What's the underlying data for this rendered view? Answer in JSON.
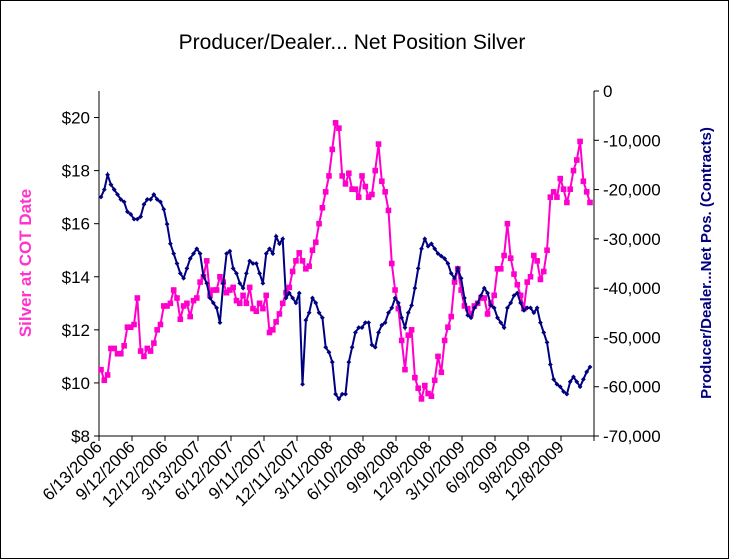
{
  "chart_data": {
    "type": "line",
    "title": "Producer/Dealer... Net Position Silver",
    "xlabel": "",
    "y_left_label": "Silver at COT Date",
    "y_right_label": "Producer/Dealer...Net Pos. (Contracts)",
    "x_tick_labels": [
      "6/13/2006",
      "9/12/2006",
      "12/12/2006",
      "3/13/2007",
      "6/12/2007",
      "9/11/2007",
      "12/11/2007",
      "3/11/2008",
      "6/10/2008",
      "9/9/2008",
      "12/9/2008",
      "3/10/2009",
      "6/9/2009",
      "9/8/2009",
      "12/8/2009"
    ],
    "y_left_ticks": [
      "$8",
      "$10",
      "$12",
      "$14",
      "$16",
      "$18",
      "$20"
    ],
    "y_left_range": [
      8,
      21
    ],
    "y_right_ticks": [
      "0",
      "-10,000",
      "-20,000",
      "-30,000",
      "-40,000",
      "-50,000",
      "-60,000",
      "-70,000"
    ],
    "y_right_range": [
      -70000,
      0
    ],
    "grid": false,
    "legend": "none",
    "series": [
      {
        "axis": "left",
        "color": "#ff00cc",
        "marker": "square",
        "values": [
          10.5,
          10.1,
          10.3,
          11.3,
          11.3,
          11.1,
          11.1,
          11.4,
          12.1,
          12.1,
          12.2,
          13.2,
          11.2,
          11.0,
          11.3,
          11.2,
          11.5,
          12.0,
          12.2,
          12.9,
          12.9,
          13.0,
          13.5,
          13.2,
          12.4,
          12.9,
          13.0,
          12.5,
          13.1,
          13.2,
          13.8,
          14.0,
          14.6,
          13.3,
          13.5,
          13.5,
          14.0,
          13.8,
          13.4,
          13.5,
          13.6,
          13.1,
          13.0,
          13.3,
          13.0,
          13.6,
          12.8,
          12.7,
          13.0,
          12.8,
          13.3,
          11.9,
          12.0,
          12.3,
          12.6,
          13.0,
          13.4,
          13.6,
          14.2,
          14.6,
          14.9,
          14.6,
          14.3,
          14.4,
          15.0,
          15.3,
          16.0,
          16.6,
          17.2,
          17.8,
          18.8,
          19.8,
          19.6,
          17.8,
          17.5,
          17.9,
          17.3,
          17.3,
          17.0,
          17.8,
          17.4,
          17.0,
          17.1,
          18.0,
          19.0,
          17.6,
          17.2,
          16.5,
          14.5,
          13.5,
          12.8,
          11.6,
          10.5,
          11.8,
          12.0,
          10.2,
          9.8,
          9.4,
          9.9,
          9.6,
          9.5,
          10.1,
          11.0,
          10.4,
          11.6,
          12.1,
          12.5,
          13.8,
          14.3,
          13.5,
          12.9,
          12.8,
          12.6,
          12.9,
          13.0,
          13.2,
          13.2,
          12.6,
          13.0,
          13.3,
          14.3,
          14.3,
          14.8,
          16.0,
          14.7,
          14.1,
          13.7,
          13.3,
          12.8,
          13.8,
          14.0,
          14.8,
          14.6,
          13.9,
          14.2,
          15.0,
          17.0,
          17.2,
          17.0,
          17.7,
          17.3,
          16.8,
          17.3,
          18.0,
          18.4,
          19.1,
          17.6,
          17.2,
          16.8
        ]
      },
      {
        "axis": "right",
        "color": "#000080",
        "marker": "diamond",
        "values": [
          -21500,
          -20000,
          -17000,
          -19000,
          -20000,
          -21000,
          -22000,
          -22500,
          -24500,
          -25000,
          -26000,
          -26000,
          -25500,
          -23000,
          -22000,
          -22000,
          -21000,
          -22000,
          -22500,
          -24000,
          -27000,
          -31000,
          -33000,
          -35000,
          -37000,
          -38000,
          -36000,
          -34000,
          -33000,
          -32000,
          -33000,
          -37500,
          -39000,
          -42000,
          -43000,
          -44000,
          -47000,
          -39000,
          -33000,
          -32500,
          -36000,
          -37000,
          -39000,
          -40000,
          -37000,
          -34500,
          -35000,
          -35000,
          -37000,
          -39000,
          -33000,
          -32000,
          -33000,
          -29500,
          -31000,
          -30000,
          -42000,
          -41000,
          -42000,
          -43000,
          -41000,
          -59500,
          -46500,
          -45000,
          -42000,
          -43000,
          -45000,
          -46000,
          -52000,
          -53000,
          -55000,
          -61500,
          -62500,
          -61500,
          -61500,
          -55000,
          -52000,
          -49000,
          -48000,
          -48000,
          -47000,
          -47000,
          -51500,
          -52000,
          -49000,
          -47500,
          -47000,
          -45000,
          -44000,
          -42000,
          -43000,
          -46000,
          -48000,
          -45000,
          -43500,
          -40000,
          -36000,
          -32000,
          -30000,
          -31500,
          -31000,
          -32000,
          -33000,
          -33500,
          -34000,
          -35000,
          -37000,
          -38000,
          -36000,
          -38000,
          -42000,
          -45500,
          -46000,
          -44000,
          -43000,
          -41500,
          -40000,
          -41000,
          -43500,
          -44000,
          -46000,
          -47000,
          -48000,
          -44000,
          -43000,
          -41500,
          -41000,
          -43000,
          -44500,
          -44000,
          -44000,
          -45000,
          -44000,
          -47000,
          -49000,
          -51000,
          -55500,
          -58500,
          -59500,
          -60000,
          -61000,
          -61500,
          -59000,
          -58000,
          -59000,
          -60000,
          -58500,
          -57000,
          -56000
        ]
      }
    ]
  }
}
